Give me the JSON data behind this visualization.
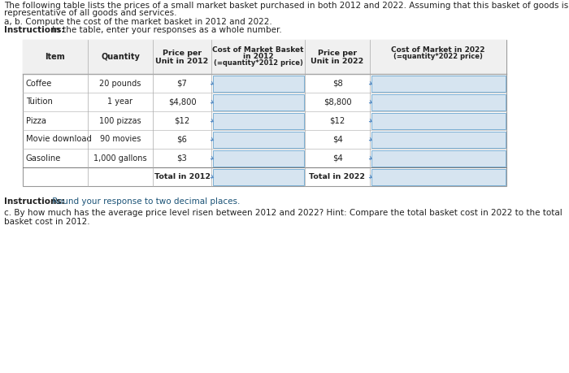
{
  "title_line1": "The following table lists the prices of a small market basket purchased in both 2012 and 2022. Assuming that this basket of goods is",
  "title_line2": "representative of all goods and services.",
  "subtitle": "a, b. Compute the cost of the market basket in 2012 and 2022.",
  "instr1_bold": "Instructions:",
  "instr1_rest": " In the table, enter your responses as a whole number.",
  "items": [
    "Coffee",
    "Tuition",
    "Pizza",
    "Movie download",
    "Gasoline"
  ],
  "quantities": [
    "20 pounds",
    "1 year",
    "100 pizzas",
    "90 movies",
    "1,000 gallons"
  ],
  "prices_2012": [
    "$7",
    "$4,800",
    "$12",
    "$6",
    "$3"
  ],
  "prices_2022": [
    "$8",
    "$8,800",
    "$12",
    "$4",
    "$4"
  ],
  "col_headers_line1": [
    "Item",
    "Quantity",
    "Price per",
    "Cost of Market Basket",
    "Price per",
    "Cost of Market in 2022"
  ],
  "col_headers_line2": [
    "",
    "",
    "Unit in 2012",
    "in 2012",
    "Unit in 2022",
    "(=quantity*2022 price)"
  ],
  "col_headers_line3": [
    "",
    "",
    "",
    "(=quantity*2012 price)",
    "",
    ""
  ],
  "total_2012": "Total in 2012",
  "total_2022": "Total in 2022",
  "instr2_bold": "Instructions:",
  "instr2_rest": " Round your response to two decimal places.",
  "footer_line1": "c. By how much has the average price level risen between 2012 and 2022? Hint: Compare the total basket cost in 2022 to the total",
  "footer_line2": "basket cost in 2012.",
  "bg_color": "#e8e8e8",
  "white": "#ffffff",
  "input_fc": "#d6e4f0",
  "input_ec": "#7bafd4",
  "dark_text": "#222222",
  "blue_bold": "#1a3a8f",
  "hint_italic": "#333333"
}
